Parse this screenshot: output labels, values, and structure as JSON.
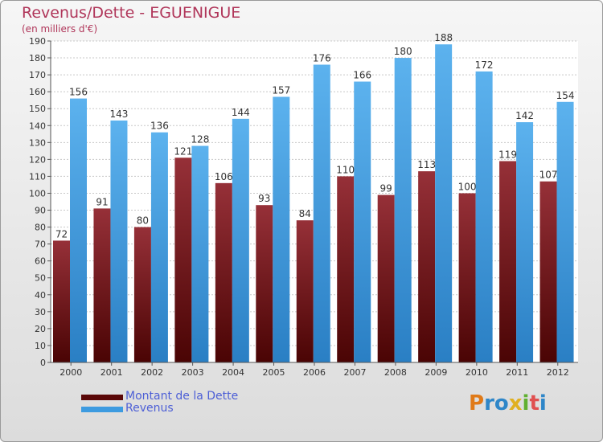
{
  "title": "Revenus/Dette - EGUENIGUE",
  "subtitle": "(en milliers d'€)",
  "chart_data": {
    "type": "bar",
    "title": "Revenus/Dette - EGUENIGUE",
    "ylabel": "(en milliers d'€)",
    "xlabel": "",
    "categories": [
      "2000",
      "2001",
      "2002",
      "2003",
      "2004",
      "2005",
      "2006",
      "2007",
      "2008",
      "2009",
      "2010",
      "2011",
      "2012"
    ],
    "series": [
      {
        "name": "Montant de la Dette",
        "color": "#7a1a1a",
        "values": [
          72,
          91,
          80,
          121,
          106,
          93,
          84,
          110,
          99,
          113,
          100,
          119,
          107
        ]
      },
      {
        "name": "Revenus",
        "color": "#4fa8e8",
        "values": [
          156,
          143,
          136,
          128,
          144,
          157,
          176,
          166,
          180,
          188,
          172,
          142,
          154
        ]
      }
    ],
    "ylim": [
      0,
      190
    ],
    "ytick_step": 10,
    "grid": true,
    "legend_position": "bottom-left"
  },
  "legend": {
    "debt_label": "Montant de la Dette",
    "revenue_label": "Revenus",
    "debt_color": "#5a0808",
    "revenue_color": "#3d9be0"
  },
  "logo": {
    "letters": [
      "P",
      "r",
      "o",
      "x",
      "i",
      "t",
      "i"
    ],
    "colors": [
      "#e07a18",
      "#2e86c8",
      "#2e86c8",
      "#e0b020",
      "#60b030",
      "#e05050",
      "#2e86c8"
    ]
  }
}
